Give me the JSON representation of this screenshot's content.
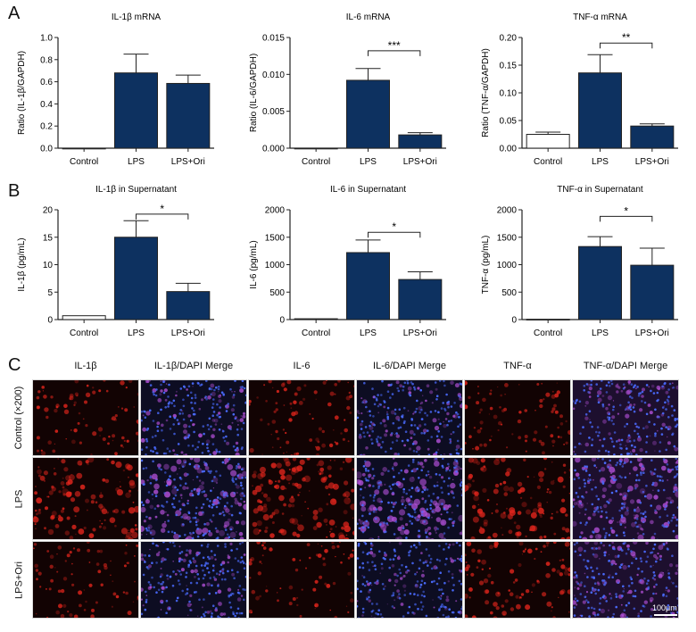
{
  "panels": {
    "a": "A",
    "b": "B",
    "c": "C"
  },
  "chart_data": [
    {
      "type": "bar",
      "title": "IL-1β mRNA",
      "ylabel": "Ratio (IL-1β/GAPDH)",
      "categories": [
        "Control",
        "LPS",
        "LPS+Ori"
      ],
      "values": [
        0.0,
        0.68,
        0.585
      ],
      "errors": [
        0.0,
        0.17,
        0.075
      ],
      "ylim": [
        0,
        1.0
      ],
      "yticks": [
        "0.0",
        "0.2",
        "0.4",
        "0.6",
        "0.8",
        "1.0"
      ],
      "sig": null
    },
    {
      "type": "bar",
      "title": "IL-6 mRNA",
      "ylabel": "Ratio (IL-6/GAPDH)",
      "categories": [
        "Control",
        "LPS",
        "LPS+Ori"
      ],
      "values": [
        0.0,
        0.0092,
        0.0018
      ],
      "errors": [
        0.0,
        0.0016,
        0.0003
      ],
      "ylim": [
        0,
        0.015
      ],
      "yticks": [
        "0.000",
        "0.005",
        "0.010",
        "0.015"
      ],
      "sig": {
        "from": 1,
        "to": 2,
        "label": "***",
        "y": 0.0132
      }
    },
    {
      "type": "bar",
      "title": "TNF-α mRNA",
      "ylabel": "Ratio (TNF-α/GAPDH)",
      "categories": [
        "Control",
        "LPS",
        "LPS+Ori"
      ],
      "values": [
        0.025,
        0.136,
        0.04
      ],
      "errors": [
        0.004,
        0.033,
        0.004
      ],
      "ylim": [
        0,
        0.2
      ],
      "yticks": [
        "0.00",
        "0.05",
        "0.10",
        "0.15",
        "0.20"
      ],
      "sig": {
        "from": 1,
        "to": 2,
        "label": "**",
        "y": 0.19
      }
    },
    {
      "type": "bar",
      "title": "IL-1β in Supernatant",
      "ylabel": "IL-1β (pg/mL)",
      "categories": [
        "Control",
        "LPS",
        "LPS+Ori"
      ],
      "values": [
        0.7,
        15.0,
        5.1
      ],
      "errors": [
        0.0,
        3.0,
        1.5
      ],
      "ylim": [
        0,
        20
      ],
      "yticks": [
        "0",
        "5",
        "10",
        "15",
        "20"
      ],
      "sig": {
        "from": 1,
        "to": 2,
        "label": "*",
        "y": 19.2
      }
    },
    {
      "type": "bar",
      "title": "IL-6 in Supernatant",
      "ylabel": "IL-6 (pg/mL)",
      "categories": [
        "Control",
        "LPS",
        "LPS+Ori"
      ],
      "values": [
        15,
        1220,
        730
      ],
      "errors": [
        0,
        230,
        140
      ],
      "ylim": [
        0,
        2000
      ],
      "yticks": [
        "0",
        "500",
        "1000",
        "1500",
        "2000"
      ],
      "sig": {
        "from": 1,
        "to": 2,
        "label": "*",
        "y": 1590
      }
    },
    {
      "type": "bar",
      "title": "TNF-α in Supernatant",
      "ylabel": "TNF-α (pg/mL)",
      "categories": [
        "Control",
        "LPS",
        "LPS+Ori"
      ],
      "values": [
        5,
        1330,
        990
      ],
      "errors": [
        0,
        180,
        310
      ],
      "ylim": [
        0,
        2000
      ],
      "yticks": [
        "0",
        "500",
        "1000",
        "1500",
        "2000"
      ],
      "sig": {
        "from": 1,
        "to": 2,
        "label": "*",
        "y": 1880
      }
    }
  ],
  "bar_colors": [
    "#ffffff",
    "#0d3160",
    "#0d3160"
  ],
  "micrographs": {
    "columns": [
      "IL-1β",
      "IL-1β/DAPI Merge",
      "IL-6",
      "IL-6/DAPI Merge",
      "TNF-α",
      "TNF-α/DAPI Merge"
    ],
    "rows": [
      "Control (×200)",
      "LPS",
      "LPS+Ori"
    ],
    "scale_bar": "100μm",
    "colors": {
      "red": "#e5261d",
      "blue": "#4a6bff",
      "purple": "#b04fd6"
    }
  }
}
